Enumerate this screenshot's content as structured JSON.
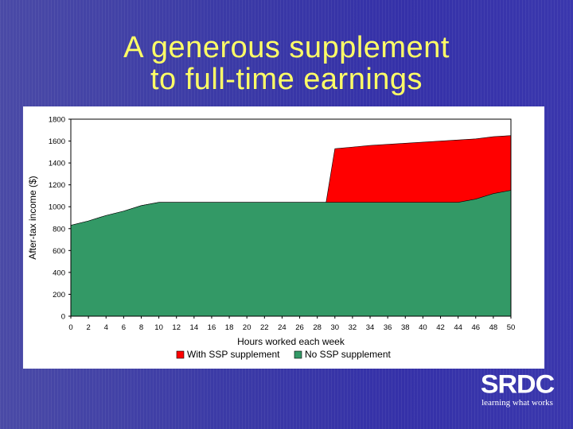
{
  "slide": {
    "title_line1": "A generous supplement",
    "title_line2": "to full-time earnings"
  },
  "logo": {
    "name": "SRDC",
    "tagline": "learning what works"
  },
  "colors": {
    "title": "#ffff66",
    "with_ssp": "#ff0000",
    "no_ssp": "#339966",
    "background": "#3c3ba8"
  },
  "chart_data": {
    "type": "area",
    "xlabel": "Hours worked each week",
    "ylabel": "After-tax income ($)",
    "xlim": [
      0,
      50
    ],
    "ylim": [
      0,
      1800
    ],
    "x_ticks": [
      0,
      2,
      4,
      6,
      8,
      10,
      12,
      14,
      16,
      18,
      20,
      22,
      24,
      26,
      28,
      30,
      32,
      34,
      36,
      38,
      40,
      42,
      44,
      46,
      48,
      50
    ],
    "y_ticks": [
      0,
      200,
      400,
      600,
      800,
      1000,
      1200,
      1400,
      1600,
      1800
    ],
    "grid": false,
    "legend_position": "bottom",
    "series": [
      {
        "name": "With SSP supplement",
        "color": "#ff0000",
        "x": [
          0,
          2,
          4,
          6,
          8,
          10,
          12,
          14,
          16,
          18,
          20,
          22,
          24,
          26,
          28,
          29,
          30,
          32,
          34,
          36,
          38,
          40,
          42,
          44,
          46,
          48,
          50
        ],
        "y": [
          830,
          870,
          920,
          960,
          1010,
          1040,
          1040,
          1040,
          1040,
          1040,
          1040,
          1040,
          1040,
          1040,
          1040,
          1040,
          1530,
          1545,
          1560,
          1570,
          1580,
          1590,
          1600,
          1610,
          1620,
          1640,
          1650
        ]
      },
      {
        "name": "No SSP supplement",
        "color": "#339966",
        "x": [
          0,
          2,
          4,
          6,
          8,
          10,
          12,
          14,
          16,
          18,
          20,
          22,
          24,
          26,
          28,
          29,
          30,
          32,
          34,
          36,
          38,
          40,
          42,
          44,
          46,
          48,
          50
        ],
        "y": [
          830,
          870,
          920,
          960,
          1010,
          1040,
          1040,
          1040,
          1040,
          1040,
          1040,
          1040,
          1040,
          1040,
          1040,
          1040,
          1040,
          1040,
          1040,
          1040,
          1040,
          1040,
          1040,
          1040,
          1070,
          1120,
          1150
        ]
      }
    ]
  }
}
